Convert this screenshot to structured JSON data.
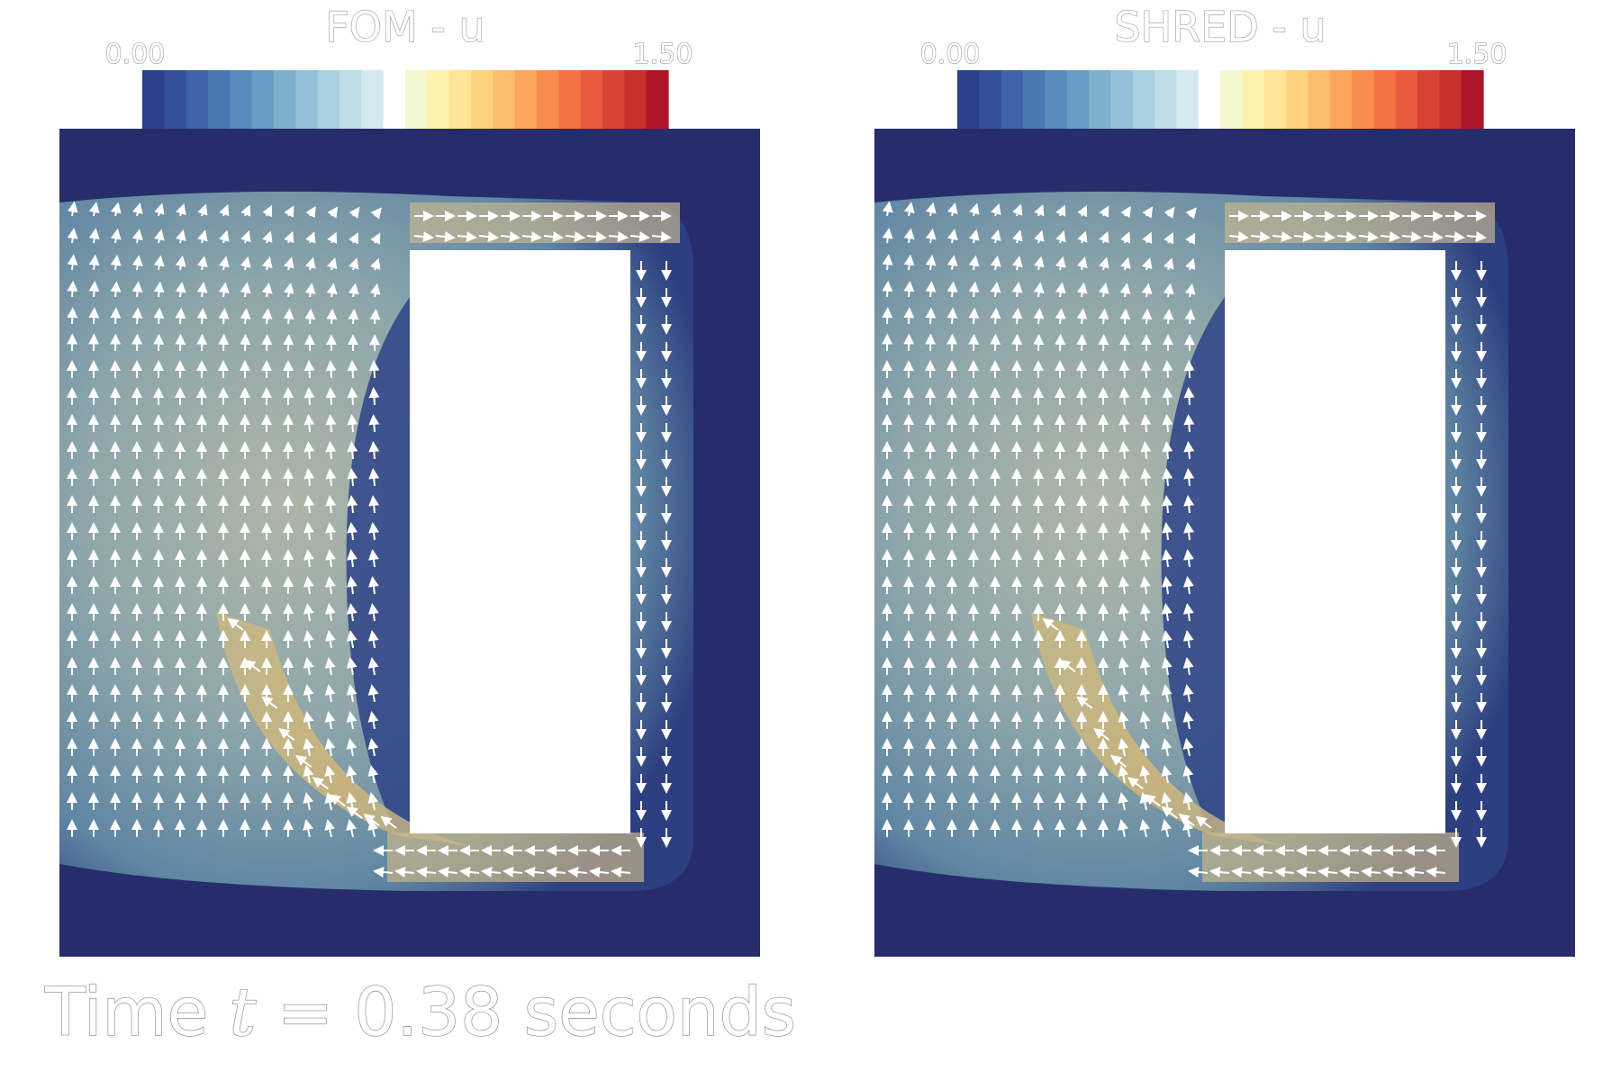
{
  "panels": [
    {
      "id": "fom",
      "title": "FOM - u",
      "colorbar": {
        "min_label": "0.00",
        "max_label": "1.50"
      }
    },
    {
      "id": "shred",
      "title": "SHRED - u",
      "colorbar": {
        "min_label": "0.00",
        "max_label": "1.50"
      }
    }
  ],
  "caption": {
    "prefix": "Time ",
    "variable": "t",
    "suffix": " = 0.38 seconds"
  },
  "colormap": [
    "#2b3f8f",
    "#34509b",
    "#3f63a8",
    "#4a76b3",
    "#588abd",
    "#6a9dc6",
    "#7db0cf",
    "#92c0d7",
    "#a8d0de",
    "#bfdde6",
    "#d4e9ee",
    "#ffffff",
    "#f4f7cf",
    "#fdf1b0",
    "#fee496",
    "#fed27f",
    "#fdbd6a",
    "#fca65b",
    "#f98d4f",
    "#f37345",
    "#e85b3d",
    "#d94333",
    "#c7302c",
    "#ad1528"
  ],
  "domain_background_color": "#272d6b"
}
